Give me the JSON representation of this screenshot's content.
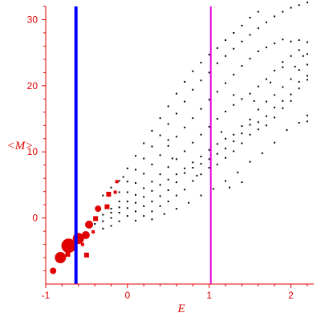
{
  "chart_data": {
    "type": "scatter",
    "xlabel": "E",
    "ylabel": "<M>",
    "xlim": [
      -1,
      2.28
    ],
    "ylim": [
      -10,
      32
    ],
    "x_ticks": [
      -1,
      0,
      1,
      2
    ],
    "y_ticks": [
      0,
      10,
      20,
      30
    ],
    "grid": false,
    "colors": {
      "axes": "#e00000",
      "points": "#000000",
      "large_points": "#e00000",
      "line_1": "#0000ff",
      "line_2": "#e000e0"
    },
    "vertical_lines": [
      {
        "x": -0.63,
        "color": "#0000ff",
        "style": "thick"
      },
      {
        "x": 1.02,
        "color": "#e000e0",
        "style": "thin"
      }
    ],
    "large_points": [
      {
        "x": -0.72,
        "y": -4.2,
        "size": 9
      },
      {
        "x": -0.6,
        "y": -3.1,
        "size": 7
      },
      {
        "x": -0.51,
        "y": -2.6,
        "size": 5
      },
      {
        "x": -0.47,
        "y": -1.0,
        "size": 5
      },
      {
        "x": -0.82,
        "y": -6.0,
        "size": 7
      },
      {
        "x": -0.91,
        "y": -8.0,
        "size": 4
      },
      {
        "x": -0.36,
        "y": 1.4,
        "size": 4
      },
      {
        "x": -0.73,
        "y": -5.5,
        "size": 3
      },
      {
        "x": -0.5,
        "y": -5.6,
        "size": 3
      },
      {
        "x": -0.23,
        "y": 3.6,
        "size": 3
      },
      {
        "x": -0.25,
        "y": 1.7,
        "size": 3
      },
      {
        "x": -0.39,
        "y": -0.1,
        "size": 3
      },
      {
        "x": -0.42,
        "y": -2.1,
        "size": 2
      },
      {
        "x": -0.55,
        "y": -4.0,
        "size": 2
      },
      {
        "x": -0.13,
        "y": 5.5,
        "size": 2
      },
      {
        "x": -0.15,
        "y": 3.9,
        "size": 2
      }
    ],
    "points": [
      [
        -0.1,
        5.6
      ],
      [
        0.0,
        7.5
      ],
      [
        0.1,
        9.4
      ],
      [
        0.2,
        11.3
      ],
      [
        0.3,
        13.2
      ],
      [
        0.4,
        15.1
      ],
      [
        0.5,
        16.9
      ],
      [
        0.6,
        18.8
      ],
      [
        0.7,
        20.6
      ],
      [
        0.8,
        22.2
      ],
      [
        0.9,
        23.5
      ],
      [
        1.0,
        24.7
      ],
      [
        1.1,
        25.7
      ],
      [
        1.2,
        26.9
      ],
      [
        1.3,
        28.0
      ],
      [
        1.4,
        29.1
      ],
      [
        1.5,
        30.3
      ],
      [
        1.6,
        31.2
      ],
      [
        -0.1,
        3.9
      ],
      [
        0.0,
        5.5
      ],
      [
        0.1,
        7.3
      ],
      [
        0.2,
        9.0
      ],
      [
        0.3,
        10.8
      ],
      [
        0.4,
        12.5
      ],
      [
        0.5,
        14.2
      ],
      [
        0.6,
        15.8
      ],
      [
        0.7,
        17.6
      ],
      [
        0.8,
        19.4
      ],
      [
        0.9,
        20.8
      ],
      [
        1.0,
        22.0
      ],
      [
        1.1,
        23.4
      ],
      [
        1.2,
        24.5
      ],
      [
        1.3,
        25.6
      ],
      [
        1.4,
        26.7
      ],
      [
        1.5,
        27.7
      ],
      [
        1.6,
        28.7
      ],
      [
        1.7,
        29.6
      ],
      [
        1.8,
        30.5
      ],
      [
        1.9,
        31.2
      ],
      [
        2.0,
        31.8
      ],
      [
        2.1,
        32.2
      ],
      [
        2.2,
        32.6
      ],
      [
        -0.2,
        1.4
      ],
      [
        -0.1,
        2.5
      ],
      [
        0.0,
        3.9
      ],
      [
        0.1,
        5.3
      ],
      [
        0.2,
        6.7
      ],
      [
        0.3,
        8.1
      ],
      [
        0.4,
        9.5
      ],
      [
        0.5,
        10.9
      ],
      [
        0.6,
        12.3
      ],
      [
        0.7,
        13.7
      ],
      [
        0.8,
        15.1
      ],
      [
        0.9,
        16.5
      ],
      [
        1.0,
        17.9
      ],
      [
        1.1,
        19.1
      ],
      [
        1.2,
        20.4
      ],
      [
        1.3,
        21.7
      ],
      [
        1.4,
        23.0
      ],
      [
        1.5,
        24.1
      ],
      [
        1.6,
        25.2
      ],
      [
        1.7,
        25.8
      ],
      [
        1.8,
        26.4
      ],
      [
        1.9,
        27.0
      ],
      [
        2.0,
        26.7
      ],
      [
        2.1,
        26.9
      ],
      [
        2.2,
        26.6
      ],
      [
        -0.3,
        0.5
      ],
      [
        -0.2,
        0.8
      ],
      [
        -0.1,
        1.6
      ],
      [
        0.0,
        2.5
      ],
      [
        0.1,
        3.5
      ],
      [
        0.2,
        4.5
      ],
      [
        0.3,
        5.5
      ],
      [
        0.4,
        6.6
      ],
      [
        0.5,
        7.7
      ],
      [
        0.6,
        8.9
      ],
      [
        0.7,
        10.1
      ],
      [
        0.8,
        11.4
      ],
      [
        0.9,
        12.6
      ],
      [
        1.0,
        13.8
      ],
      [
        1.1,
        15.0
      ],
      [
        1.2,
        16.1
      ],
      [
        1.3,
        17.1
      ],
      [
        1.4,
        18.0
      ],
      [
        1.5,
        18.8
      ],
      [
        1.6,
        19.9
      ],
      [
        1.7,
        21.0
      ],
      [
        1.8,
        22.3
      ],
      [
        1.9,
        23.6
      ],
      [
        2.0,
        24.5
      ],
      [
        2.1,
        25.4
      ],
      [
        2.2,
        24.8
      ],
      [
        -0.4,
        -0.9
      ],
      [
        -0.3,
        -0.5
      ],
      [
        -0.2,
        0.0
      ],
      [
        -0.1,
        0.8
      ],
      [
        0.0,
        1.5
      ],
      [
        0.1,
        2.3
      ],
      [
        0.2,
        3.2
      ],
      [
        0.3,
        4.1
      ],
      [
        0.4,
        5.0
      ],
      [
        0.5,
        5.8
      ],
      [
        0.6,
        6.6
      ],
      [
        0.7,
        7.5
      ],
      [
        0.8,
        8.4
      ],
      [
        0.9,
        9.3
      ],
      [
        1.0,
        10.3
      ],
      [
        1.1,
        11.2
      ],
      [
        1.2,
        12.0
      ],
      [
        1.3,
        12.6
      ],
      [
        1.4,
        13.9
      ],
      [
        1.5,
        14.9
      ],
      [
        1.6,
        16.4
      ],
      [
        1.7,
        17.6
      ],
      [
        1.8,
        18.6
      ],
      [
        1.9,
        19.8
      ],
      [
        2.0,
        21.0
      ],
      [
        2.1,
        22.4
      ],
      [
        2.2,
        23.2
      ],
      [
        -0.3,
        -1.6
      ],
      [
        -0.2,
        -1.2
      ],
      [
        -0.1,
        -0.5
      ],
      [
        0.0,
        0.3
      ],
      [
        0.1,
        1.0
      ],
      [
        0.2,
        1.8
      ],
      [
        0.3,
        2.5
      ],
      [
        0.4,
        3.3
      ],
      [
        0.5,
        4.2
      ],
      [
        0.6,
        5.4
      ],
      [
        0.7,
        6.8
      ],
      [
        0.8,
        7.6
      ],
      [
        0.9,
        8.2
      ],
      [
        1.0,
        8.9
      ],
      [
        1.1,
        9.7
      ],
      [
        1.2,
        10.5
      ],
      [
        1.3,
        11.6
      ],
      [
        1.4,
        12.8
      ],
      [
        1.5,
        14.1
      ],
      [
        1.6,
        14.5
      ],
      [
        1.7,
        15.4
      ],
      [
        1.8,
        16.7
      ],
      [
        1.9,
        17.7
      ],
      [
        2.0,
        18.7
      ],
      [
        2.1,
        20.6
      ],
      [
        2.2,
        21.5
      ],
      [
        0.1,
        -0.4
      ],
      [
        0.2,
        0.3
      ],
      [
        0.3,
        1.0
      ],
      [
        0.4,
        1.8
      ],
      [
        0.5,
        2.5
      ],
      [
        0.6,
        3.4
      ],
      [
        0.7,
        4.3
      ],
      [
        0.8,
        5.6
      ],
      [
        0.9,
        6.6
      ],
      [
        1.0,
        7.6
      ],
      [
        1.1,
        8.1
      ],
      [
        1.2,
        9.1
      ],
      [
        1.3,
        10.1
      ],
      [
        1.4,
        11.3
      ],
      [
        1.5,
        12.6
      ],
      [
        1.6,
        13.4
      ],
      [
        1.7,
        14.0
      ],
      [
        1.8,
        15.2
      ],
      [
        1.9,
        16.6
      ],
      [
        2.0,
        17.7
      ],
      [
        2.1,
        19.6
      ],
      [
        2.2,
        20.9
      ],
      [
        0.3,
        -0.2
      ],
      [
        0.45,
        0.6
      ],
      [
        0.6,
        1.4
      ],
      [
        0.75,
        2.3
      ],
      [
        0.9,
        3.4
      ],
      [
        1.05,
        4.4
      ],
      [
        1.2,
        5.6
      ],
      [
        1.35,
        6.9
      ],
      [
        1.5,
        8.5
      ],
      [
        1.65,
        9.8
      ],
      [
        1.8,
        11.4
      ],
      [
        1.95,
        13.3
      ],
      [
        2.1,
        14.4
      ],
      [
        2.2,
        15.5
      ],
      [
        -0.3,
        3.4
      ],
      [
        -0.2,
        4.6
      ],
      [
        -0.05,
        6.2
      ],
      [
        0.5,
        11.8
      ],
      [
        1.3,
        18.6
      ],
      [
        1.9,
        22.8
      ],
      [
        2.05,
        22.9
      ],
      [
        2.15,
        24.5
      ],
      [
        1.75,
        20.5
      ],
      [
        1.55,
        17.7
      ],
      [
        1.15,
        13.0
      ],
      [
        0.55,
        9.0
      ],
      [
        0.85,
        6.4
      ],
      [
        1.25,
        4.6
      ],
      [
        1.4,
        5.4
      ],
      [
        2.2,
        14.6
      ]
    ]
  }
}
